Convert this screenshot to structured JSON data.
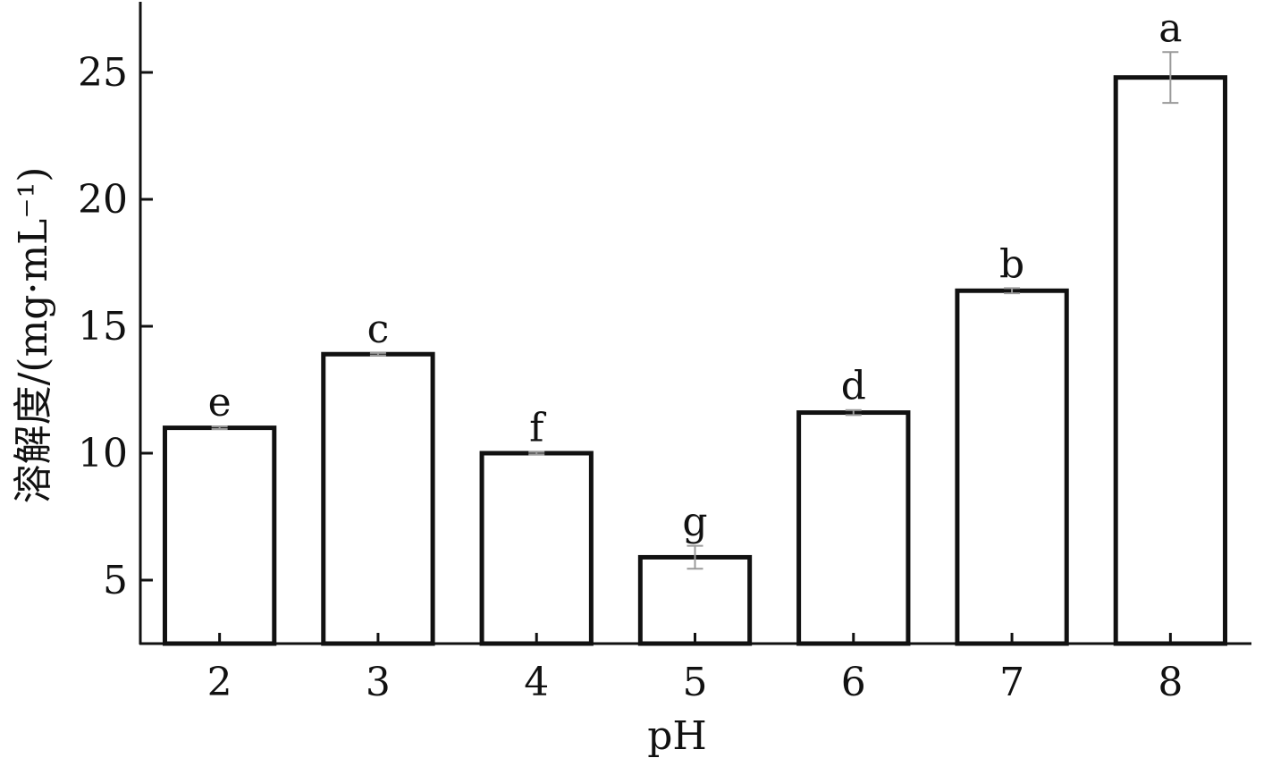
{
  "chart_data": {
    "type": "bar",
    "categories": [
      "2",
      "3",
      "4",
      "5",
      "6",
      "7",
      "8"
    ],
    "values": [
      11.0,
      13.9,
      10.0,
      5.9,
      11.6,
      16.4,
      24.8
    ],
    "errors": [
      0.05,
      0.05,
      0.05,
      0.45,
      0.1,
      0.1,
      1.0
    ],
    "significance": [
      "e",
      "c",
      "f",
      "g",
      "d",
      "b",
      "a"
    ],
    "title": "",
    "xlabel": "pH",
    "ylabel": "溶解度/(mg·mL⁻¹)",
    "ylim": [
      2.5,
      27.5
    ],
    "yticks": [
      5,
      10,
      15,
      20,
      25
    ],
    "grid": false,
    "colors": {
      "bar_fill": "#ffffff",
      "bar_stroke": "#111111",
      "error_bar": "#9a9a9a",
      "axis": "#111111"
    }
  }
}
